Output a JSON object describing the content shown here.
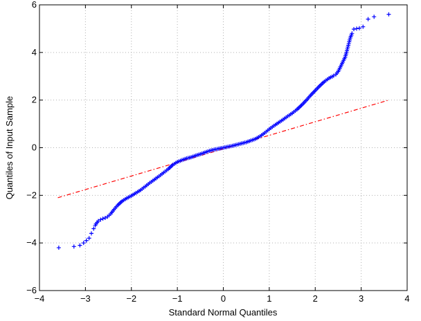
{
  "chart_data": {
    "type": "scatter",
    "title": "",
    "xlabel": "Standard Normal Quantiles",
    "ylabel": "Quantiles of Input Sample",
    "xlim": [
      -4,
      4
    ],
    "ylim": [
      -6,
      6
    ],
    "xticks": [
      -4,
      -3,
      -2,
      -1,
      0,
      1,
      2,
      3,
      4
    ],
    "yticks": [
      -6,
      -4,
      -2,
      0,
      2,
      4,
      6
    ],
    "xtick_labels": [
      "−4",
      "−3",
      "−2",
      "−1",
      "0",
      "1",
      "2",
      "3",
      "4"
    ],
    "ytick_labels": [
      "−6",
      "−4",
      "−2",
      "0",
      "2",
      "4",
      "6"
    ],
    "grid": true,
    "marker": "+",
    "colors": {
      "points": "#0000ff",
      "ref_line": "#ff0000",
      "grid": "#b0b0b0",
      "axes": "#000000"
    },
    "points": [
      [
        -3.58,
        -4.2
      ],
      [
        -3.25,
        -4.15
      ],
      [
        -3.12,
        -4.1
      ],
      [
        -3.04,
        -4.0
      ],
      [
        -2.98,
        -3.9
      ],
      [
        -2.92,
        -3.8
      ],
      [
        -2.87,
        -3.6
      ],
      [
        -2.82,
        -3.4
      ],
      [
        -2.77,
        -3.2
      ],
      [
        -2.72,
        -3.08
      ],
      [
        -2.67,
        -3.02
      ],
      [
        -2.62,
        -2.98
      ],
      [
        -2.57,
        -2.95
      ],
      [
        -2.52,
        -2.9
      ],
      [
        -2.45,
        -2.78
      ],
      [
        -2.38,
        -2.6
      ],
      [
        -2.3,
        -2.42
      ],
      [
        -2.2,
        -2.24
      ],
      [
        -2.1,
        -2.12
      ],
      [
        -2.0,
        -2.02
      ],
      [
        -1.9,
        -1.9
      ],
      [
        -1.8,
        -1.78
      ],
      [
        -1.7,
        -1.63
      ],
      [
        -1.6,
        -1.48
      ],
      [
        -1.5,
        -1.34
      ],
      [
        -1.4,
        -1.2
      ],
      [
        -1.3,
        -1.05
      ],
      [
        -1.2,
        -0.9
      ],
      [
        -1.1,
        -0.72
      ],
      [
        -1.0,
        -0.6
      ],
      [
        -0.9,
        -0.52
      ],
      [
        -0.8,
        -0.45
      ],
      [
        -0.7,
        -0.4
      ],
      [
        -0.6,
        -0.33
      ],
      [
        -0.5,
        -0.27
      ],
      [
        -0.4,
        -0.2
      ],
      [
        -0.3,
        -0.13
      ],
      [
        -0.2,
        -0.08
      ],
      [
        -0.1,
        -0.04
      ],
      [
        0.0,
        0.0
      ],
      [
        0.1,
        0.04
      ],
      [
        0.2,
        0.08
      ],
      [
        0.3,
        0.13
      ],
      [
        0.4,
        0.18
      ],
      [
        0.5,
        0.23
      ],
      [
        0.6,
        0.3
      ],
      [
        0.7,
        0.37
      ],
      [
        0.8,
        0.48
      ],
      [
        0.9,
        0.62
      ],
      [
        1.0,
        0.78
      ],
      [
        1.1,
        0.92
      ],
      [
        1.2,
        1.05
      ],
      [
        1.3,
        1.18
      ],
      [
        1.4,
        1.32
      ],
      [
        1.5,
        1.45
      ],
      [
        1.6,
        1.6
      ],
      [
        1.7,
        1.78
      ],
      [
        1.8,
        1.98
      ],
      [
        1.9,
        2.2
      ],
      [
        2.0,
        2.4
      ],
      [
        2.1,
        2.6
      ],
      [
        2.2,
        2.78
      ],
      [
        2.3,
        2.92
      ],
      [
        2.4,
        3.02
      ],
      [
        2.45,
        3.08
      ],
      [
        2.5,
        3.2
      ],
      [
        2.55,
        3.4
      ],
      [
        2.6,
        3.6
      ],
      [
        2.65,
        3.8
      ],
      [
        2.68,
        4.0
      ],
      [
        2.72,
        4.3
      ],
      [
        2.76,
        4.6
      ],
      [
        2.8,
        4.8
      ],
      [
        2.84,
        4.98
      ],
      [
        2.9,
        5.0
      ],
      [
        2.96,
        5.02
      ],
      [
        3.04,
        5.08
      ],
      [
        3.15,
        5.4
      ],
      [
        3.28,
        5.5
      ],
      [
        3.6,
        5.6
      ]
    ],
    "reference_line": {
      "x": [
        -3.6,
        3.6
      ],
      "y": [
        -2.1,
        2.0
      ]
    }
  }
}
